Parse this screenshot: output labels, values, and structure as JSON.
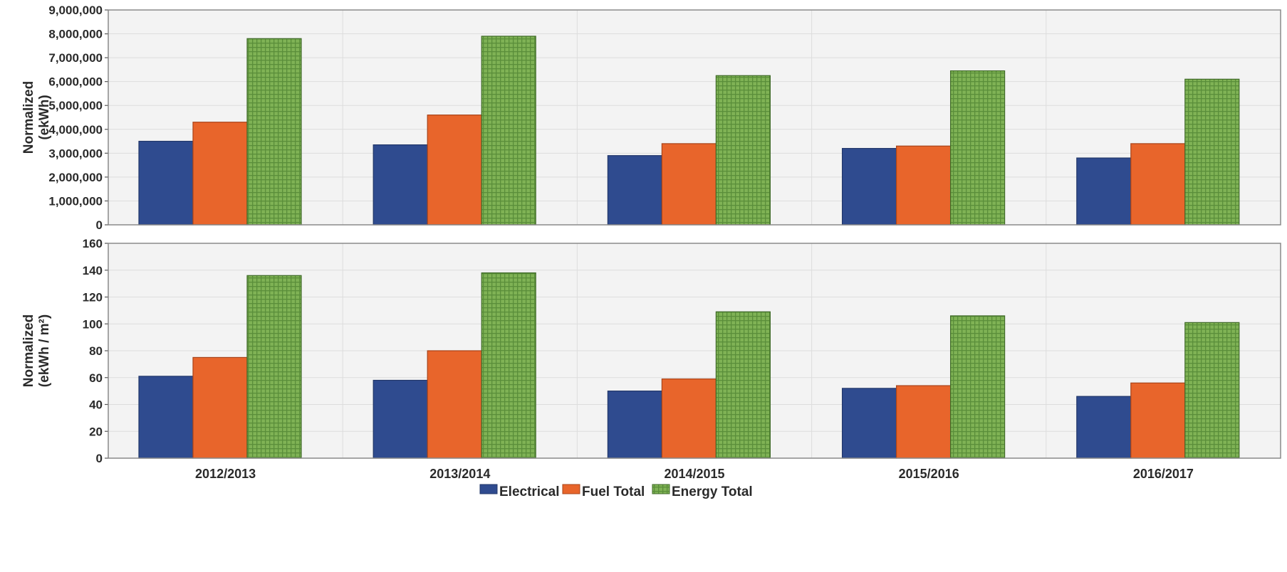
{
  "chart_data": [
    {
      "type": "bar",
      "ylabel": [
        "Normalized",
        "(ekWh)"
      ],
      "ylim": [
        0,
        9000000
      ],
      "yticks": [
        0,
        1000000,
        2000000,
        3000000,
        4000000,
        5000000,
        6000000,
        7000000,
        8000000,
        9000000
      ],
      "ytick_labels": [
        "0",
        "1,000,000",
        "2,000,000",
        "3,000,000",
        "4,000,000",
        "5,000,000",
        "6,000,000",
        "7,000,000",
        "8,000,000",
        "9,000,000"
      ],
      "categories": [
        "2012/2013",
        "2013/2014",
        "2014/2015",
        "2015/2016",
        "2016/2017"
      ],
      "grid": true,
      "series": [
        {
          "name": "Electrical",
          "values": [
            3500000,
            3350000,
            2900000,
            3200000,
            2800000
          ]
        },
        {
          "name": "Fuel Total",
          "values": [
            4300000,
            4600000,
            3400000,
            3300000,
            3400000
          ]
        },
        {
          "name": "Energy Total",
          "values": [
            7800000,
            7900000,
            6250000,
            6450000,
            6100000
          ]
        }
      ]
    },
    {
      "type": "bar",
      "ylabel": [
        "Normalized",
        "(ekWh / m²)"
      ],
      "ylim": [
        0,
        160
      ],
      "yticks": [
        0,
        20,
        40,
        60,
        80,
        100,
        120,
        140,
        160
      ],
      "ytick_labels": [
        "0",
        "20",
        "40",
        "60",
        "80",
        "100",
        "120",
        "140",
        "160"
      ],
      "categories": [
        "2012/2013",
        "2013/2014",
        "2014/2015",
        "2015/2016",
        "2016/2017"
      ],
      "grid": true,
      "series": [
        {
          "name": "Electrical",
          "values": [
            61,
            58,
            50,
            52,
            46
          ]
        },
        {
          "name": "Fuel Total",
          "values": [
            75,
            80,
            59,
            54,
            56
          ]
        },
        {
          "name": "Energy Total",
          "values": [
            136,
            138,
            109,
            106,
            101
          ]
        }
      ]
    }
  ],
  "legend": {
    "position": "bottom",
    "items": [
      {
        "label": "Electrical",
        "color": "#2f4b8f"
      },
      {
        "label": "Fuel Total",
        "color": "#e8652b"
      },
      {
        "label": "Energy Total",
        "color": "#72a64a"
      }
    ]
  },
  "colors": {
    "electrical": "#2f4b8f",
    "fuel_total": "#e8652b",
    "energy_total": "#72a64a",
    "grid": "#dddddd",
    "plot_background": "#f3f3f3"
  }
}
